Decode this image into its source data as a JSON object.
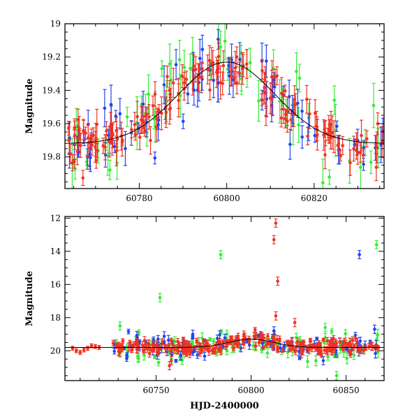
{
  "chart_data": [
    {
      "type": "scatter",
      "panel": "top",
      "xlim": [
        60763,
        60836
      ],
      "ylim": [
        19.99,
        19.0
      ],
      "y_inverted": true,
      "ylabel": "Magnitude",
      "xlabel": "",
      "x_ticks": [
        60780,
        60800,
        60820
      ],
      "y_ticks": [
        19,
        19.2,
        19.4,
        19.6,
        19.8
      ],
      "x_tick_labels": [
        "60780",
        "60800",
        "60820"
      ],
      "y_tick_labels": [
        "19",
        "19.2",
        "19.4",
        "19.6",
        "19.8"
      ],
      "grid": false,
      "model_curve": {
        "color": "#000000",
        "baseline": 19.72,
        "peak": 19.23,
        "t0": 60800,
        "tE": 11
      },
      "series": [
        {
          "color": "#33ee33",
          "point_count": 60,
          "seed": 11,
          "mag_scatter": 0.14,
          "err_range": [
            0.04,
            0.16
          ]
        },
        {
          "color": "#2244ee",
          "point_count": 80,
          "seed": 23,
          "mag_scatter": 0.1,
          "err_range": [
            0.03,
            0.12
          ]
        },
        {
          "color": "#ee3322",
          "point_count": 170,
          "seed": 37,
          "mag_scatter": 0.07,
          "err_range": [
            0.03,
            0.1
          ]
        }
      ]
    },
    {
      "type": "scatter",
      "panel": "bottom",
      "xlim": [
        60702,
        60870
      ],
      "ylim": [
        21.8,
        11.9
      ],
      "y_inverted": true,
      "ylabel": "Magnitude",
      "xlabel": "HJD-2400000",
      "x_ticks": [
        60750,
        60800,
        60850
      ],
      "y_ticks": [
        12,
        14,
        16,
        18,
        20
      ],
      "x_tick_labels": [
        "60750",
        "60800",
        "60850"
      ],
      "y_tick_labels": [
        "12",
        "14",
        "16",
        "18",
        "20"
      ],
      "grid": false,
      "model_curve": {
        "color": "#000000",
        "baseline": 19.8,
        "peak": 19.3,
        "t0": 60800,
        "tE": 12
      },
      "series": [
        {
          "color": "#33ee33",
          "point_count": 90,
          "seed": 53,
          "x_range": [
            60728,
            60867
          ],
          "mag_scatter": 0.45,
          "err_range": [
            0.1,
            0.35
          ],
          "outliers": [
            [
              60752,
              16.8
            ],
            [
              60784,
              14.2
            ],
            [
              60866,
              13.6
            ],
            [
              60731,
              18.5
            ],
            [
              60839,
              18.6
            ],
            [
              60845,
              21.5
            ],
            [
              60758,
              20.5
            ]
          ]
        },
        {
          "color": "#2244ee",
          "point_count": 110,
          "seed": 67,
          "x_range": [
            60728,
            60867
          ],
          "mag_scatter": 0.3,
          "err_range": [
            0.08,
            0.3
          ],
          "outliers": [
            [
              60857,
              14.2
            ],
            [
              60865,
              18.7
            ],
            [
              60838,
              20.6
            ],
            [
              60812,
              18.8
            ]
          ]
        },
        {
          "color": "#ee3322",
          "point_count": 260,
          "seed": 79,
          "x_range": [
            60727,
            60867
          ],
          "mag_scatter": 0.22,
          "err_range": [
            0.08,
            0.25
          ],
          "early_points": [
            [
              60706,
              19.85
            ],
            [
              60708,
              20.0
            ],
            [
              60710,
              20.1
            ],
            [
              60712,
              19.95
            ],
            [
              60714,
              19.85
            ],
            [
              60716,
              19.7
            ],
            [
              60718,
              19.75
            ],
            [
              60720,
              19.8
            ]
          ],
          "outliers": [
            [
              60812,
              13.3
            ],
            [
              60813,
              12.3
            ],
            [
              60814,
              15.8
            ],
            [
              60813,
              17.9
            ],
            [
              60823,
              18.3
            ],
            [
              60758,
              20.6
            ],
            [
              60757,
              20.9
            ]
          ]
        }
      ]
    }
  ]
}
